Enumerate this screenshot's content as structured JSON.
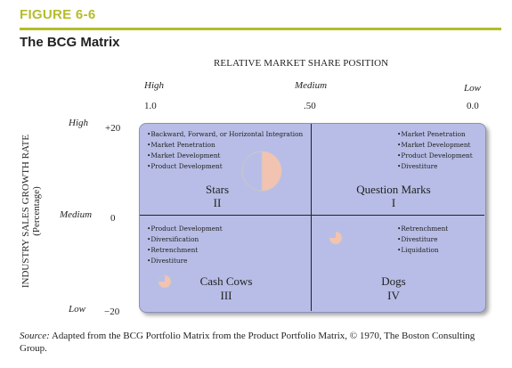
{
  "figure": {
    "label": "FIGURE 6-6",
    "title": "The BCG Matrix"
  },
  "x_axis": {
    "title": "RELATIVE MARKET SHARE POSITION",
    "levels": [
      {
        "label": "High",
        "value": "1.0"
      },
      {
        "label": "Medium",
        "value": ".50"
      },
      {
        "label": "Low",
        "value": "0.0"
      }
    ]
  },
  "y_axis": {
    "title": "INDUSTRY SALES GROWTH RATE",
    "subtitle": "(Percentage)",
    "levels": [
      {
        "label": "High",
        "value": "+20"
      },
      {
        "label": "Medium",
        "value": "0"
      },
      {
        "label": "Low",
        "value": "−20"
      }
    ]
  },
  "quadrants": {
    "stars": {
      "name": "Stars",
      "numeral": "II",
      "items": [
        "Backward, Forward, or Horizontal Integration",
        "Market Penetration",
        "Market Development",
        "Product Development"
      ]
    },
    "question_marks": {
      "name": "Question Marks",
      "numeral": "I",
      "items": [
        "Market Penetration",
        "Market Development",
        "Product Development",
        "Divestiture"
      ]
    },
    "cash_cows": {
      "name": "Cash Cows",
      "numeral": "III",
      "items": [
        "Product Development",
        "Diversification",
        "Retrenchment",
        "Divestiture"
      ]
    },
    "dogs": {
      "name": "Dogs",
      "numeral": "IV",
      "items": [
        "Retrenchment",
        "Divestiture",
        "Liquidation"
      ]
    }
  },
  "source": {
    "prefix": "Source:",
    "text": " Adapted from the BCG Portfolio Matrix from the Product Portfolio Matrix, © 1970, The Boston Consulting Group."
  },
  "colors": {
    "accent": "#b5bd2a",
    "matrix_fill": "#b7bde6",
    "pie_fill": "#f2c3b0"
  }
}
